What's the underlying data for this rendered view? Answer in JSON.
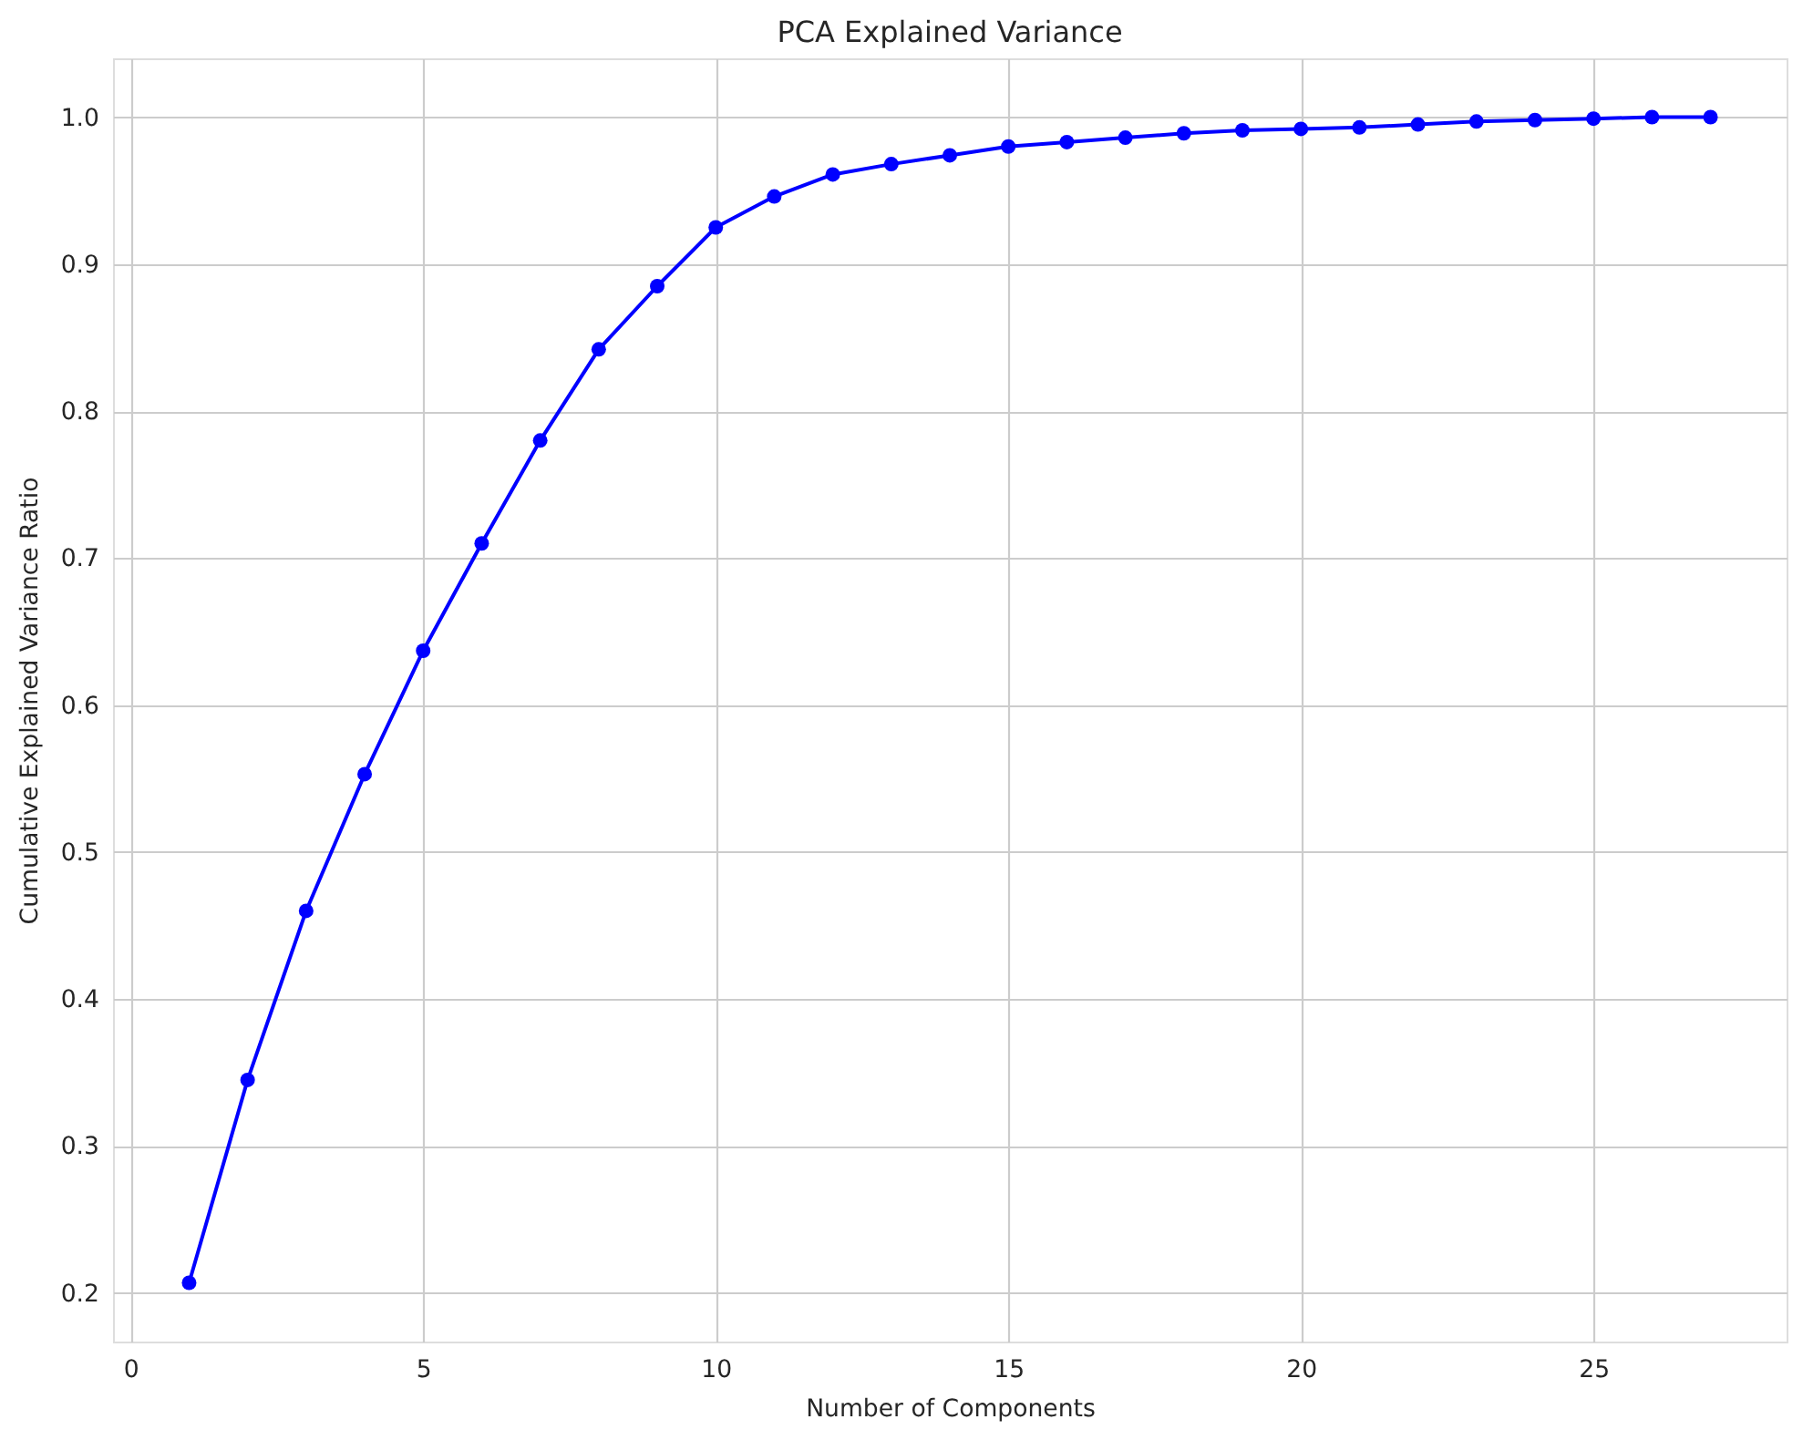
{
  "chart_data": {
    "type": "line",
    "title": "PCA Explained Variance",
    "xlabel": "Number of Components",
    "ylabel": "Cumulative Explained Variance Ratio",
    "x": [
      1,
      2,
      3,
      4,
      5,
      6,
      7,
      8,
      9,
      10,
      11,
      12,
      13,
      14,
      15,
      16,
      17,
      18,
      19,
      20,
      21,
      22,
      23,
      24,
      25,
      26,
      27
    ],
    "series": [
      {
        "color": "#0000ff",
        "values": [
          0.207,
          0.345,
          0.46,
          0.553,
          0.637,
          0.71,
          0.78,
          0.842,
          0.885,
          0.925,
          0.946,
          0.961,
          0.968,
          0.974,
          0.98,
          0.983,
          0.986,
          0.989,
          0.991,
          0.992,
          0.993,
          0.995,
          0.997,
          0.998,
          0.999,
          1.0,
          1.0
        ]
      }
    ],
    "xlim": [
      -0.3,
      28.3
    ],
    "xticks": [
      0,
      5,
      10,
      15,
      20,
      25
    ],
    "ylim": [
      0.167,
      1.04
    ],
    "yticks": [
      0.2,
      0.3,
      0.4,
      0.5,
      0.6,
      0.7,
      0.8,
      0.9,
      {
        "value": 1,
        "label": "1.0"
      }
    ],
    "grid": true,
    "marker": "circle",
    "line_style": "solid"
  }
}
